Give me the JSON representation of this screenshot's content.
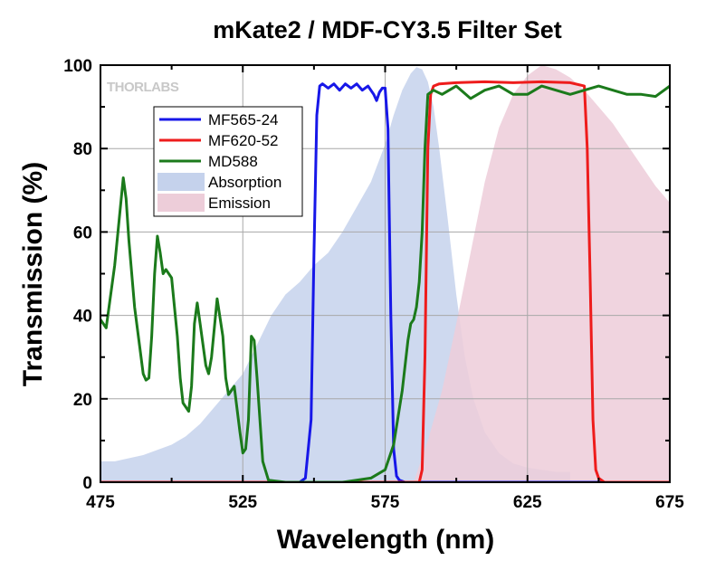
{
  "chart_data": {
    "type": "line",
    "title": "mKate2 / MDF-CY3.5 Filter Set",
    "xlabel": "Wavelength (nm)",
    "ylabel": "Transmission (%)",
    "xlim": [
      475,
      675
    ],
    "ylim": [
      0,
      100
    ],
    "x_ticks": [
      "475",
      "525",
      "575",
      "625",
      "675"
    ],
    "y_ticks": [
      "0",
      "20",
      "40",
      "60",
      "80",
      "100"
    ],
    "grid": true,
    "legend_position": "top-left",
    "logo_text": "THORLABS",
    "series": [
      {
        "name": "Absorption",
        "kind": "area",
        "color": "#c5d2ec",
        "x": [
          475,
          480,
          490,
          500,
          505,
          510,
          515,
          520,
          525,
          530,
          535,
          540,
          545,
          550,
          555,
          560,
          565,
          570,
          575,
          578,
          581,
          584,
          586,
          588,
          590,
          592,
          594,
          597,
          600,
          603,
          606,
          610,
          615,
          620,
          625,
          630,
          635,
          640
        ],
        "y": [
          5,
          5,
          6.5,
          9,
          11,
          14,
          18,
          22,
          26,
          33,
          40,
          45,
          48,
          52,
          55,
          60,
          66,
          72,
          81,
          88,
          94,
          98,
          99.5,
          99,
          96,
          90,
          80,
          63,
          45,
          30,
          20,
          12,
          7,
          4.5,
          3.5,
          3,
          2.5,
          2.5
        ]
      },
      {
        "name": "Emission",
        "kind": "area",
        "color": "#edcdd9",
        "x": [
          585,
          590,
          595,
          600,
          605,
          610,
          615,
          620,
          625,
          630,
          635,
          640,
          645,
          650,
          655,
          660,
          665,
          670,
          675
        ],
        "y": [
          0,
          10,
          22,
          38,
          55,
          72,
          85,
          93,
          97.5,
          100,
          99,
          97,
          94,
          90,
          86,
          81,
          76,
          71,
          67
        ]
      },
      {
        "name": "MF565-24",
        "kind": "line",
        "color": "#1717e8",
        "x": [
          475,
          545,
          547,
          549,
          550,
          551,
          552,
          553,
          555,
          557,
          559,
          561,
          563,
          565,
          567,
          569,
          571,
          572,
          573,
          574,
          575,
          576,
          577,
          578,
          579,
          580,
          582,
          675
        ],
        "y": [
          0,
          0,
          1,
          15,
          55,
          88,
          95,
          95.5,
          94.5,
          95.5,
          94,
          95.5,
          94.5,
          95.5,
          94,
          95,
          93,
          91.5,
          93.5,
          94.5,
          94.5,
          85,
          40,
          8,
          1.5,
          0.5,
          0,
          0
        ]
      },
      {
        "name": "MF620-52",
        "kind": "line",
        "color": "#ee1c1c",
        "x": [
          475,
          587,
          588,
          589,
          590,
          591,
          592,
          594,
          600,
          610,
          620,
          630,
          640,
          645,
          646,
          647,
          648,
          649,
          650,
          652,
          675
        ],
        "y": [
          0,
          0,
          3,
          30,
          80,
          93,
          95,
          95.5,
          95.8,
          96,
          95.8,
          96,
          95.8,
          95,
          80,
          50,
          15,
          3,
          1,
          0,
          0
        ]
      },
      {
        "name": "MD588",
        "kind": "line",
        "color": "#1b7a1b",
        "x": [
          475,
          477,
          480,
          483,
          484,
          485,
          487,
          490,
          491,
          492,
          493,
          494,
          495,
          496,
          497,
          498,
          500,
          502,
          503,
          504,
          506,
          507,
          508,
          509,
          510,
          512,
          513,
          514,
          516,
          518,
          519,
          520,
          522,
          524,
          525,
          526,
          527,
          528,
          529,
          530,
          532,
          534,
          540,
          560,
          570,
          575,
          578,
          581,
          583,
          584,
          585,
          586,
          587,
          588,
          589,
          590,
          592,
          595,
          600,
          605,
          610,
          615,
          620,
          625,
          630,
          635,
          640,
          645,
          650,
          655,
          660,
          665,
          670,
          675
        ],
        "y": [
          39,
          37,
          52,
          73,
          68,
          58,
          42,
          26,
          24.5,
          25,
          35,
          50,
          59,
          55,
          50,
          51,
          49,
          35,
          25,
          19,
          17,
          23,
          38,
          43,
          38,
          28,
          26,
          30,
          44,
          35,
          25,
          21,
          23,
          12,
          7,
          8,
          15,
          35,
          34,
          25,
          5,
          0.5,
          0,
          0,
          1,
          3,
          9,
          22,
          34,
          38,
          39,
          42,
          48,
          60,
          80,
          93,
          94,
          93,
          95,
          92,
          94,
          95,
          93,
          93,
          95,
          94,
          93,
          94,
          95,
          94,
          93,
          93,
          92.5,
          95
        ]
      }
    ]
  }
}
